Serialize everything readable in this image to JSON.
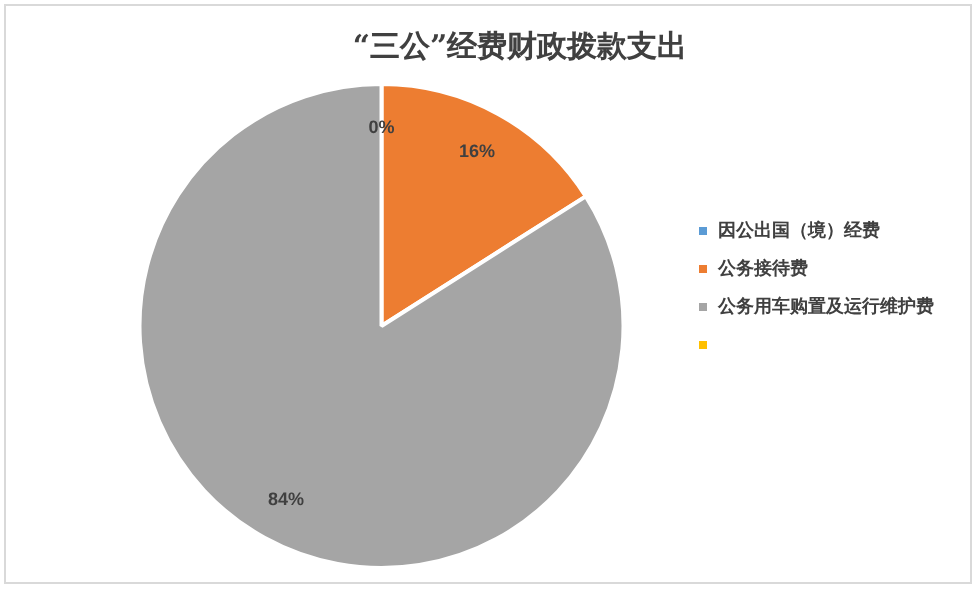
{
  "chart_data": {
    "type": "pie",
    "title": "“三公”经费财政拨款支出",
    "categories": [
      "因公出国（境）经费",
      "公务接待费",
      "公务用车购置及运行维护费",
      null
    ],
    "values": [
      0,
      16,
      84,
      0
    ],
    "colors": [
      "#5b9bd5",
      "#ed7d31",
      "#a5a5a5",
      "#ffc000"
    ],
    "value_labels": [
      "0%",
      "16%",
      "84%",
      null
    ],
    "legend": "right"
  }
}
